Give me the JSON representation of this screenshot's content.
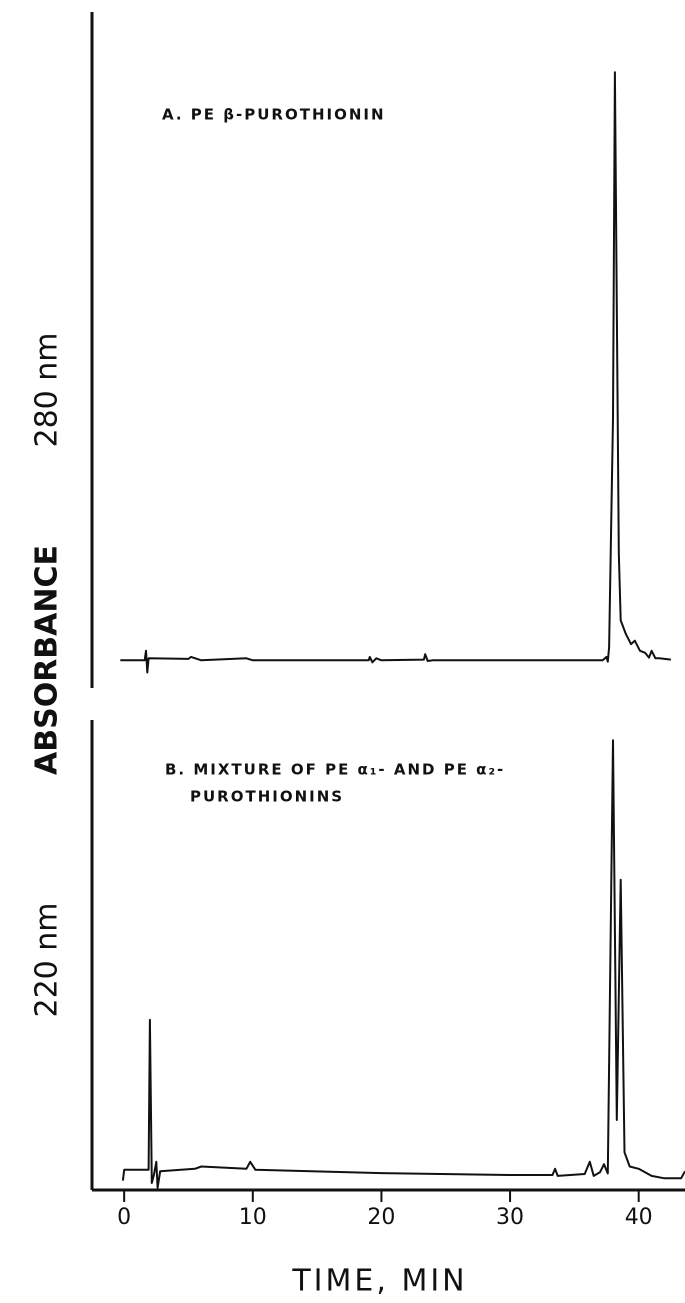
{
  "ylabel": "ABSORBANCE",
  "chart_data": [
    {
      "type": "line",
      "title": [
        "A. PE β-PUROTHIONIN"
      ],
      "ylabel": "280 nm",
      "x": [
        -0.3,
        1.6,
        1.7,
        1.8,
        1.9,
        5,
        5.2,
        6,
        9.5,
        10,
        19,
        19.1,
        19.3,
        19.6,
        20,
        23.3,
        23.4,
        23.6,
        24,
        37.2,
        37.5,
        37.6,
        37.7,
        38.0,
        38.15,
        38.45,
        38.6,
        39,
        39.4,
        39.7,
        40.1,
        40.5,
        40.8,
        41,
        41.3,
        41.6,
        42.5
      ],
      "series": [
        {
          "color": "#111111",
          "values": [
            4.1,
            4.1,
            5.5,
            2.3,
            4.4,
            4.3,
            4.6,
            4.1,
            4.4,
            4.1,
            4.1,
            4.6,
            3.8,
            4.4,
            4.1,
            4.2,
            5.0,
            4.0,
            4.1,
            4.1,
            4.6,
            3.9,
            6,
            40,
            91.1,
            20,
            10,
            8,
            6.5,
            7,
            5.5,
            5.2,
            4.5,
            5.5,
            4.4,
            4.4,
            4.2
          ]
        }
      ],
      "xlim": [
        -2.5,
        43.6
      ],
      "ylim": [
        0,
        100
      ]
    },
    {
      "type": "line",
      "title": [
        "B. MIXTURE OF PE α₁- AND PE α₂-",
        "PUROTHIONINS"
      ],
      "ylabel": "220 nm",
      "xlabel": "TIME, MIN",
      "x": [
        -0.1,
        0,
        1.9,
        2.0,
        2.15,
        2.3,
        2.5,
        2.6,
        2.8,
        5.5,
        6,
        9.5,
        9.8,
        10.2,
        20,
        30,
        33.3,
        33.5,
        33.7,
        35.8,
        36.2,
        36.5,
        37,
        37.3,
        37.6,
        38.0,
        38.3,
        38.6,
        38.9,
        39.3,
        40,
        41,
        42,
        43.3,
        43.6
      ],
      "series": [
        {
          "color": "#111111",
          "values": [
            2,
            4.3,
            4.3,
            36.2,
            1.5,
            3,
            6,
            0.5,
            4,
            4.5,
            5,
            4.5,
            6,
            4.3,
            3.6,
            3.2,
            3.2,
            4.5,
            3,
            3.4,
            6,
            3,
            3.8,
            5.5,
            3.5,
            95.7,
            14.9,
            66,
            8,
            5,
            4.5,
            3,
            2.5,
            2.5,
            4
          ]
        }
      ],
      "xlim": [
        -2.5,
        43.6
      ],
      "ylim": [
        0,
        100
      ],
      "xticks": [
        0,
        10,
        20,
        30,
        40
      ]
    }
  ]
}
